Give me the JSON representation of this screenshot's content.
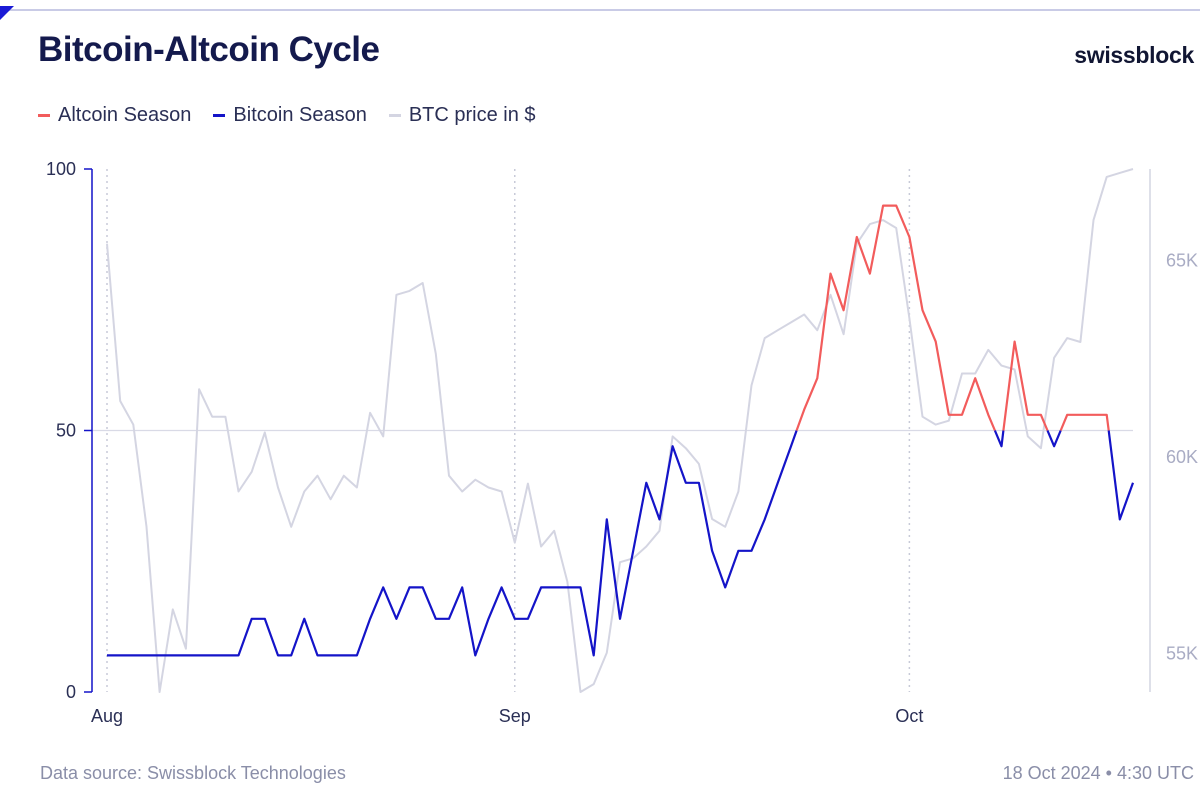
{
  "header": {
    "title": "Bitcoin-Altcoin Cycle",
    "brand": "swissblock"
  },
  "legend": [
    {
      "label": "Altcoin Season",
      "color": "#f25c5c"
    },
    {
      "label": "Bitcoin Season",
      "color": "#1414c8"
    },
    {
      "label": "BTC price in $",
      "color": "#d4d5e2"
    }
  ],
  "footer": {
    "source": "Data source: Swissblock Technologies",
    "timestamp": "18 Oct 2024 • 4:30 UTC"
  },
  "chart_data": {
    "type": "line",
    "title": "Bitcoin-Altcoin Cycle",
    "x": [
      "2024-08-01",
      "2024-08-02",
      "2024-08-03",
      "2024-08-04",
      "2024-08-05",
      "2024-08-06",
      "2024-08-07",
      "2024-08-08",
      "2024-08-09",
      "2024-08-10",
      "2024-08-11",
      "2024-08-12",
      "2024-08-13",
      "2024-08-14",
      "2024-08-15",
      "2024-08-16",
      "2024-08-17",
      "2024-08-18",
      "2024-08-19",
      "2024-08-20",
      "2024-08-21",
      "2024-08-22",
      "2024-08-23",
      "2024-08-24",
      "2024-08-25",
      "2024-08-26",
      "2024-08-27",
      "2024-08-28",
      "2024-08-29",
      "2024-08-30",
      "2024-08-31",
      "2024-09-01",
      "2024-09-02",
      "2024-09-03",
      "2024-09-04",
      "2024-09-05",
      "2024-09-06",
      "2024-09-07",
      "2024-09-08",
      "2024-09-09",
      "2024-09-10",
      "2024-09-11",
      "2024-09-12",
      "2024-09-13",
      "2024-09-14",
      "2024-09-15",
      "2024-09-16",
      "2024-09-17",
      "2024-09-18",
      "2024-09-19",
      "2024-09-20",
      "2024-09-21",
      "2024-09-22",
      "2024-09-23",
      "2024-09-24",
      "2024-09-25",
      "2024-09-26",
      "2024-09-27",
      "2024-09-28",
      "2024-09-29",
      "2024-09-30",
      "2024-10-01",
      "2024-10-02",
      "2024-10-03",
      "2024-10-04",
      "2024-10-05",
      "2024-10-06",
      "2024-10-07",
      "2024-10-08",
      "2024-10-09",
      "2024-10-10",
      "2024-10-11",
      "2024-10-12",
      "2024-10-13",
      "2024-10-14",
      "2024-10-15",
      "2024-10-16",
      "2024-10-17",
      "2024-10-18"
    ],
    "x_ticks": [
      {
        "date": "2024-08-01",
        "label": "Aug"
      },
      {
        "date": "2024-09-01",
        "label": "Sep"
      },
      {
        "date": "2024-10-01",
        "label": "Oct"
      }
    ],
    "series": [
      {
        "name": "Altcoin-Bitcoin Cycle",
        "axis": "left",
        "values": [
          7,
          7,
          7,
          7,
          7,
          7,
          7,
          7,
          7,
          7,
          7,
          14,
          14,
          7,
          7,
          14,
          7,
          7,
          7,
          7,
          14,
          20,
          14,
          20,
          20,
          14,
          14,
          20,
          7,
          14,
          20,
          14,
          14,
          20,
          20,
          20,
          20,
          7,
          33,
          14,
          27,
          40,
          33,
          47,
          40,
          40,
          27,
          20,
          27,
          27,
          33,
          40,
          47,
          54,
          60,
          80,
          73,
          87,
          80,
          93,
          93,
          87,
          73,
          67,
          53,
          53,
          60,
          53,
          47,
          67,
          53,
          53,
          47,
          53,
          53,
          53,
          53,
          33,
          40
        ],
        "season_threshold": 50,
        "colors": {
          "above": "#f25c5c",
          "below": "#1414c8"
        }
      },
      {
        "name": "BTC price in $",
        "axis": "right",
        "color": "#d4d5e2",
        "values": [
          65400,
          61400,
          60800,
          58200,
          54000,
          56100,
          55100,
          61700,
          61000,
          61000,
          59100,
          59600,
          60600,
          59200,
          58200,
          59100,
          59500,
          58900,
          59500,
          59200,
          61100,
          60500,
          64100,
          64200,
          64400,
          62600,
          59500,
          59100,
          59400,
          59200,
          59100,
          57800,
          59300,
          57700,
          58100,
          56800,
          54000,
          54200,
          55000,
          57300,
          57400,
          57700,
          58100,
          60500,
          60200,
          59800,
          58400,
          58200,
          59100,
          61800,
          63000,
          63200,
          63400,
          63600,
          63200,
          64100,
          63100,
          65400,
          65900,
          66000,
          65800,
          63500,
          61000,
          60800,
          60900,
          62100,
          62100,
          62700,
          62300,
          62200,
          60500,
          60200,
          62500,
          63000,
          62900,
          66000,
          67100,
          67200,
          67300
        ]
      }
    ],
    "y_left": {
      "range": [
        0,
        100
      ],
      "ticks": [
        0,
        50,
        100
      ]
    },
    "y_right": {
      "range": [
        54000,
        67300
      ],
      "ticks": [
        55000,
        60000,
        65000
      ],
      "tick_labels": [
        "55K",
        "60K",
        "65K"
      ]
    },
    "reference_line": 50,
    "grid": "vertical dotted at month starts"
  }
}
